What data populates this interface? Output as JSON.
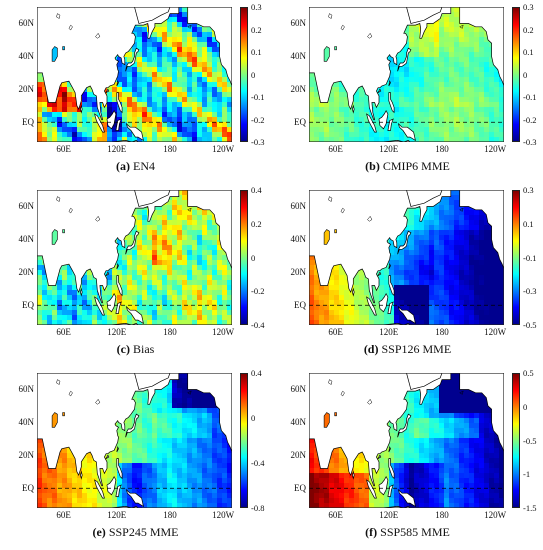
{
  "panels": [
    {
      "letter": "(a)",
      "name": "EN4",
      "ticks": [
        "0.3",
        "0.2",
        "0.1",
        "0",
        "-0.1",
        "-0.2",
        "-0.3"
      ],
      "variant": "en4"
    },
    {
      "letter": "(b)",
      "name": "CMIP6 MME",
      "ticks": [
        "0.3",
        "0.2",
        "0.1",
        "0",
        "-0.1",
        "-0.2",
        "-0.3"
      ],
      "variant": "cmip"
    },
    {
      "letter": "(c)",
      "name": "Bias",
      "ticks": [
        "0.4",
        "0.2",
        "0",
        "-0.2",
        "-0.4"
      ],
      "variant": "bias"
    },
    {
      "letter": "(d)",
      "name": "SSP126 MME",
      "ticks": [
        "0.3",
        "0.1",
        "-0.1",
        "-0.3",
        "-0.5"
      ],
      "variant": "ssp126"
    },
    {
      "letter": "(e)",
      "name": "SSP245 MME",
      "ticks": [
        "0.4",
        "0",
        "-0.4",
        "-0.8"
      ],
      "variant": "ssp245"
    },
    {
      "letter": "(f)",
      "name": "SSP585 MME",
      "ticks": [
        "0.5",
        "0",
        "-0.5",
        "-1",
        "-1.5"
      ],
      "variant": "ssp585"
    }
  ],
  "lat_labels": [
    "60N",
    "40N",
    "20N",
    "EQ"
  ],
  "lon_labels": [
    "60E",
    "120E",
    "180",
    "120W"
  ],
  "colormap": [
    "#00008f",
    "#0000ff",
    "#0080ff",
    "#00ffff",
    "#80ff80",
    "#ffff00",
    "#ff8000",
    "#ff0000",
    "#800000"
  ],
  "land_color": "#ffffff",
  "coast_color": "#000000"
}
